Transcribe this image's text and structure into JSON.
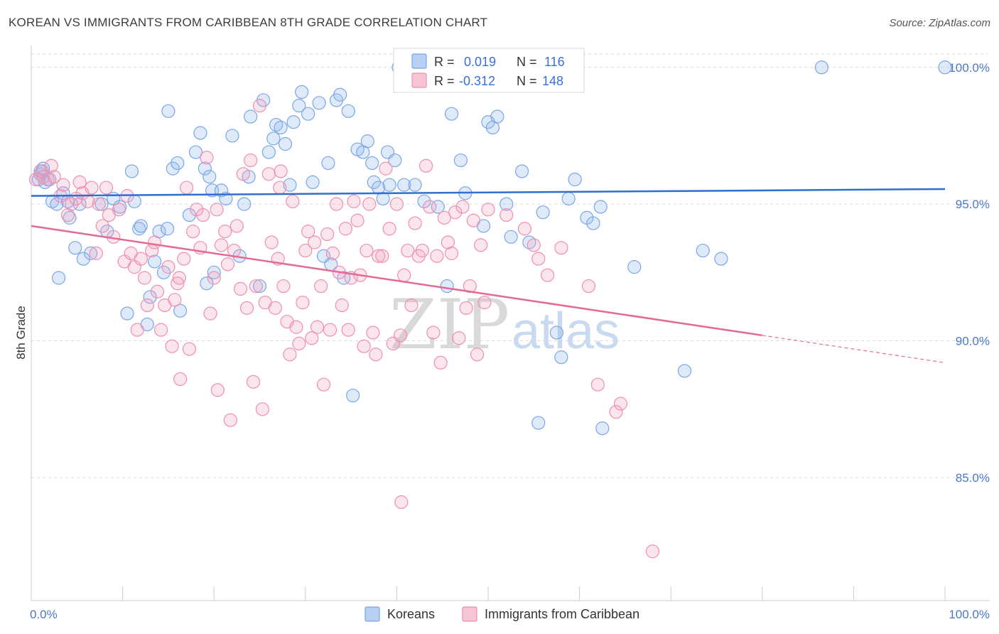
{
  "title": "KOREAN VS IMMIGRANTS FROM CARIBBEAN 8TH GRADE CORRELATION CHART",
  "source": "Source: ZipAtlas.com",
  "watermark": {
    "zip": "ZIP",
    "atlas": "atlas"
  },
  "chart_data": {
    "type": "scatter",
    "title": "KOREAN VS IMMIGRANTS FROM CARIBBEAN 8TH GRADE CORRELATION CHART",
    "xlabel": "",
    "ylabel": "8th Grade",
    "xlim": [
      0,
      100
    ],
    "ylim": [
      80.5,
      100.8
    ],
    "x_tick_labels": [
      "0.0%",
      "100.0%"
    ],
    "y_ticks": [
      85,
      90,
      95,
      100
    ],
    "y_tick_labels": [
      "85.0%",
      "90.0%",
      "95.0%",
      "100.0%"
    ],
    "grid": "horizontal dashed",
    "legend_position": "top-center",
    "legend": [
      {
        "name": "Koreans",
        "R_label": "R =",
        "R": "0.019",
        "N_label": "N =",
        "N": "116",
        "color": "#7aa6e8",
        "fill": "#b8d0f3"
      },
      {
        "name": "Immigrants from Caribbean",
        "R_label": "R =",
        "R": "-0.312",
        "N_label": "N =",
        "N": "148",
        "color": "#ee8fb0",
        "fill": "#f7c4d6"
      }
    ],
    "series": [
      {
        "name": "Koreans",
        "color": "#7aa6e8",
        "trend": {
          "x": [
            0,
            100
          ],
          "y": [
            95.3,
            95.55
          ],
          "color": "#2f6fd0"
        },
        "points": [
          [
            1,
            96.1
          ],
          [
            1.5,
            95.8
          ],
          [
            1.2,
            96.2
          ],
          [
            2,
            95.9
          ],
          [
            2.3,
            95.1
          ],
          [
            2.8,
            95.0
          ],
          [
            3.5,
            95.4
          ],
          [
            4.2,
            94.5
          ],
          [
            4.8,
            93.4
          ],
          [
            5.3,
            95.0
          ],
          [
            6.5,
            93.2
          ],
          [
            7.7,
            95.0
          ],
          [
            8.3,
            94.0
          ],
          [
            9.0,
            95.2
          ],
          [
            9.7,
            94.9
          ],
          [
            11.0,
            96.2
          ],
          [
            11.3,
            95.1
          ],
          [
            11.8,
            94.1
          ],
          [
            12.7,
            90.6
          ],
          [
            13.0,
            91.6
          ],
          [
            13.5,
            92.9
          ],
          [
            14.0,
            94.0
          ],
          [
            14.9,
            94.1
          ],
          [
            14.5,
            92.5
          ],
          [
            15.0,
            98.4
          ],
          [
            15.5,
            96.3
          ],
          [
            16.0,
            96.5
          ],
          [
            16.3,
            91.1
          ],
          [
            17.3,
            94.6
          ],
          [
            18.0,
            96.9
          ],
          [
            18.5,
            97.6
          ],
          [
            19.0,
            96.3
          ],
          [
            19.5,
            96.0
          ],
          [
            19.8,
            95.5
          ],
          [
            20.0,
            92.5
          ],
          [
            20.8,
            95.5
          ],
          [
            21.3,
            95.2
          ],
          [
            22.0,
            97.5
          ],
          [
            22.8,
            93.1
          ],
          [
            23.3,
            95.0
          ],
          [
            23.8,
            96.0
          ],
          [
            24.0,
            98.2
          ],
          [
            25.0,
            92.0
          ],
          [
            25.4,
            98.8
          ],
          [
            26.0,
            96.9
          ],
          [
            26.5,
            97.4
          ],
          [
            26.8,
            97.9
          ],
          [
            27.3,
            97.8
          ],
          [
            27.8,
            97.2
          ],
          [
            28.3,
            95.7
          ],
          [
            28.7,
            98.0
          ],
          [
            29.3,
            98.6
          ],
          [
            29.6,
            99.1
          ],
          [
            30.3,
            98.3
          ],
          [
            30.8,
            95.8
          ],
          [
            31.5,
            98.7
          ],
          [
            32.0,
            93.1
          ],
          [
            32.5,
            96.5
          ],
          [
            32.8,
            92.8
          ],
          [
            33.4,
            98.8
          ],
          [
            33.8,
            99.0
          ],
          [
            34.2,
            92.3
          ],
          [
            34.7,
            98.4
          ],
          [
            35.2,
            88.0
          ],
          [
            35.7,
            97.0
          ],
          [
            36.3,
            96.9
          ],
          [
            36.8,
            97.3
          ],
          [
            37.3,
            96.5
          ],
          [
            37.5,
            95.8
          ],
          [
            38.0,
            95.6
          ],
          [
            38.5,
            95.2
          ],
          [
            39.0,
            96.9
          ],
          [
            39.2,
            95.7
          ],
          [
            39.8,
            96.6
          ],
          [
            40.2,
            100.0
          ],
          [
            40.8,
            95.7
          ],
          [
            42.0,
            95.7
          ],
          [
            43.0,
            95.1
          ],
          [
            44.5,
            94.9
          ],
          [
            45.5,
            92.0
          ],
          [
            46.0,
            98.3
          ],
          [
            47.0,
            96.6
          ],
          [
            47.5,
            95.4
          ],
          [
            49.5,
            94.2
          ],
          [
            50.0,
            98.0
          ],
          [
            50.5,
            97.8
          ],
          [
            51.0,
            98.2
          ],
          [
            52.0,
            95.0
          ],
          [
            52.5,
            93.8
          ],
          [
            53.7,
            96.2
          ],
          [
            54.5,
            93.6
          ],
          [
            54.8,
            100.0
          ],
          [
            55.5,
            87.0
          ],
          [
            56.0,
            94.7
          ],
          [
            57.5,
            90.3
          ],
          [
            58.0,
            89.4
          ],
          [
            58.8,
            95.2
          ],
          [
            59.5,
            95.9
          ],
          [
            60.8,
            94.5
          ],
          [
            61.5,
            94.3
          ],
          [
            62.3,
            94.9
          ],
          [
            62.5,
            86.8
          ],
          [
            66.0,
            92.7
          ],
          [
            71.5,
            88.9
          ],
          [
            73.5,
            93.3
          ],
          [
            75.5,
            93.0
          ],
          [
            86.5,
            100.0
          ],
          [
            100,
            100.0
          ],
          [
            1.3,
            96.3
          ],
          [
            0.8,
            95.9
          ],
          [
            3.0,
            92.3
          ],
          [
            4.0,
            95.1
          ],
          [
            5.7,
            93.0
          ],
          [
            10.5,
            91.0
          ],
          [
            12.0,
            94.2
          ],
          [
            19.2,
            92.1
          ]
        ]
      },
      {
        "name": "Immigrants from Caribbean",
        "color": "#ee8fb0",
        "trend": {
          "x": [
            0,
            80
          ],
          "y": [
            94.2,
            90.2
          ],
          "dash_to": {
            "x": 100,
            "y": 89.2
          },
          "color": "#e46a96"
        },
        "points": [
          [
            0.5,
            95.9
          ],
          [
            1.0,
            96.2
          ],
          [
            1.3,
            96.0
          ],
          [
            1.8,
            95.9
          ],
          [
            2.2,
            96.4
          ],
          [
            2.5,
            96.0
          ],
          [
            3.2,
            95.3
          ],
          [
            3.5,
            95.7
          ],
          [
            4.0,
            94.6
          ],
          [
            4.4,
            95.0
          ],
          [
            4.9,
            95.2
          ],
          [
            5.3,
            95.8
          ],
          [
            5.6,
            95.4
          ],
          [
            6.2,
            95.1
          ],
          [
            6.6,
            95.6
          ],
          [
            7.1,
            93.2
          ],
          [
            7.4,
            95.0
          ],
          [
            7.8,
            94.2
          ],
          [
            8.2,
            95.6
          ],
          [
            8.5,
            94.6
          ],
          [
            9.0,
            93.8
          ],
          [
            9.6,
            94.8
          ],
          [
            10.2,
            92.9
          ],
          [
            10.5,
            95.3
          ],
          [
            10.9,
            93.2
          ],
          [
            11.3,
            92.7
          ],
          [
            11.6,
            90.4
          ],
          [
            12.0,
            93.0
          ],
          [
            12.4,
            92.3
          ],
          [
            12.7,
            91.3
          ],
          [
            13.2,
            93.3
          ],
          [
            13.5,
            93.6
          ],
          [
            13.8,
            91.8
          ],
          [
            14.2,
            90.4
          ],
          [
            14.6,
            91.3
          ],
          [
            15.0,
            92.7
          ],
          [
            15.4,
            89.8
          ],
          [
            15.7,
            91.5
          ],
          [
            16.0,
            92.1
          ],
          [
            16.3,
            88.6
          ],
          [
            16.7,
            93.0
          ],
          [
            17.0,
            95.6
          ],
          [
            17.3,
            89.7
          ],
          [
            17.7,
            94.0
          ],
          [
            18.1,
            94.8
          ],
          [
            18.5,
            93.4
          ],
          [
            18.8,
            94.6
          ],
          [
            19.2,
            96.7
          ],
          [
            19.6,
            91.0
          ],
          [
            20.0,
            92.3
          ],
          [
            20.4,
            88.2
          ],
          [
            20.8,
            93.5
          ],
          [
            21.2,
            94.0
          ],
          [
            21.5,
            92.8
          ],
          [
            21.8,
            87.1
          ],
          [
            22.2,
            93.3
          ],
          [
            22.5,
            94.2
          ],
          [
            22.9,
            91.9
          ],
          [
            23.2,
            96.1
          ],
          [
            23.6,
            91.2
          ],
          [
            24.0,
            96.6
          ],
          [
            24.3,
            88.5
          ],
          [
            24.6,
            92.0
          ],
          [
            25.0,
            98.6
          ],
          [
            25.3,
            87.5
          ],
          [
            25.6,
            91.4
          ],
          [
            26.0,
            96.1
          ],
          [
            26.3,
            93.6
          ],
          [
            26.7,
            91.2
          ],
          [
            27.0,
            93.0
          ],
          [
            27.3,
            96.2
          ],
          [
            27.6,
            92.0
          ],
          [
            28.0,
            90.7
          ],
          [
            28.3,
            89.5
          ],
          [
            28.6,
            95.1
          ],
          [
            29.0,
            90.5
          ],
          [
            29.3,
            89.9
          ],
          [
            29.7,
            91.4
          ],
          [
            30.0,
            93.3
          ],
          [
            30.3,
            94.0
          ],
          [
            30.7,
            90.1
          ],
          [
            31.0,
            93.6
          ],
          [
            31.3,
            90.5
          ],
          [
            31.7,
            92.0
          ],
          [
            32.0,
            88.4
          ],
          [
            32.4,
            93.9
          ],
          [
            32.7,
            90.4
          ],
          [
            33.0,
            93.2
          ],
          [
            33.4,
            95.0
          ],
          [
            33.7,
            92.5
          ],
          [
            34.0,
            91.3
          ],
          [
            34.4,
            94.1
          ],
          [
            34.7,
            90.4
          ],
          [
            35.0,
            92.3
          ],
          [
            35.3,
            95.1
          ],
          [
            35.7,
            94.4
          ],
          [
            36.0,
            92.4
          ],
          [
            36.4,
            89.8
          ],
          [
            36.7,
            93.3
          ],
          [
            37.0,
            95.0
          ],
          [
            37.4,
            90.3
          ],
          [
            37.7,
            89.5
          ],
          [
            38.0,
            93.1
          ],
          [
            38.4,
            93.1
          ],
          [
            38.8,
            96.3
          ],
          [
            39.2,
            94.1
          ],
          [
            39.6,
            89.9
          ],
          [
            40.0,
            95.0
          ],
          [
            40.4,
            90.2
          ],
          [
            40.8,
            92.4
          ],
          [
            41.2,
            93.3
          ],
          [
            41.6,
            91.3
          ],
          [
            42.0,
            94.3
          ],
          [
            42.4,
            93.1
          ],
          [
            42.8,
            93.3
          ],
          [
            43.2,
            96.4
          ],
          [
            43.6,
            94.9
          ],
          [
            44.0,
            90.3
          ],
          [
            44.4,
            93.1
          ],
          [
            44.8,
            89.2
          ],
          [
            45.2,
            94.5
          ],
          [
            45.6,
            93.6
          ],
          [
            46.0,
            93.2
          ],
          [
            46.4,
            94.7
          ],
          [
            46.8,
            90.1
          ],
          [
            47.2,
            94.9
          ],
          [
            47.6,
            91.2
          ],
          [
            48.0,
            92.0
          ],
          [
            48.4,
            94.4
          ],
          [
            48.8,
            89.5
          ],
          [
            49.2,
            93.5
          ],
          [
            49.6,
            91.4
          ],
          [
            50.0,
            94.8
          ],
          [
            52.0,
            94.6
          ],
          [
            54.0,
            94.1
          ],
          [
            55.0,
            93.5
          ],
          [
            55.5,
            93.0
          ],
          [
            56.5,
            92.4
          ],
          [
            58.0,
            93.4
          ],
          [
            61.0,
            92.0
          ],
          [
            62.0,
            88.4
          ],
          [
            64.0,
            87.4
          ],
          [
            64.5,
            87.7
          ],
          [
            68.0,
            82.3
          ],
          [
            40.5,
            84.1
          ],
          [
            16.2,
            92.3
          ],
          [
            20.3,
            94.8
          ],
          [
            27.2,
            95.6
          ]
        ]
      }
    ]
  }
}
